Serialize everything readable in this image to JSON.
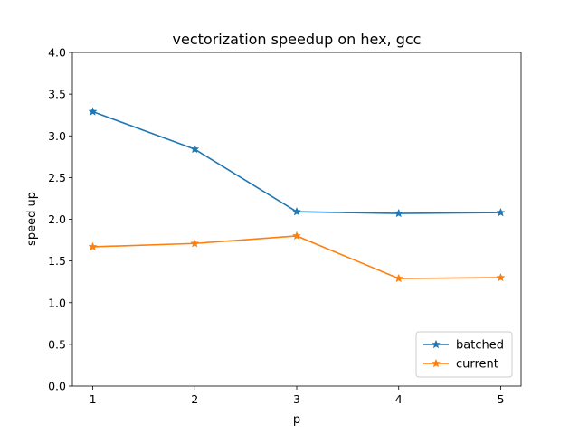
{
  "chart_data": {
    "type": "line",
    "title": "vectorization speedup on hex, gcc",
    "xlabel": "p",
    "ylabel": "speed up",
    "x": [
      1,
      2,
      3,
      4,
      5
    ],
    "xlim": [
      0.8,
      5.2
    ],
    "ylim": [
      0.0,
      4.0
    ],
    "xticks": [
      1,
      2,
      3,
      4,
      5
    ],
    "yticks": [
      0.0,
      0.5,
      1.0,
      1.5,
      2.0,
      2.5,
      3.0,
      3.5,
      4.0
    ],
    "yticklabels": [
      "0.0",
      "0.5",
      "1.0",
      "1.5",
      "2.0",
      "2.5",
      "3.0",
      "3.5",
      "4.0"
    ],
    "grid": false,
    "legend": "lower right",
    "marker": "star",
    "series": [
      {
        "name": "batched",
        "color": "#1f77b4",
        "values": [
          3.29,
          2.84,
          2.09,
          2.07,
          2.08
        ]
      },
      {
        "name": "current",
        "color": "#ff7f0e",
        "values": [
          1.67,
          1.71,
          1.8,
          1.29,
          1.3
        ]
      }
    ]
  }
}
